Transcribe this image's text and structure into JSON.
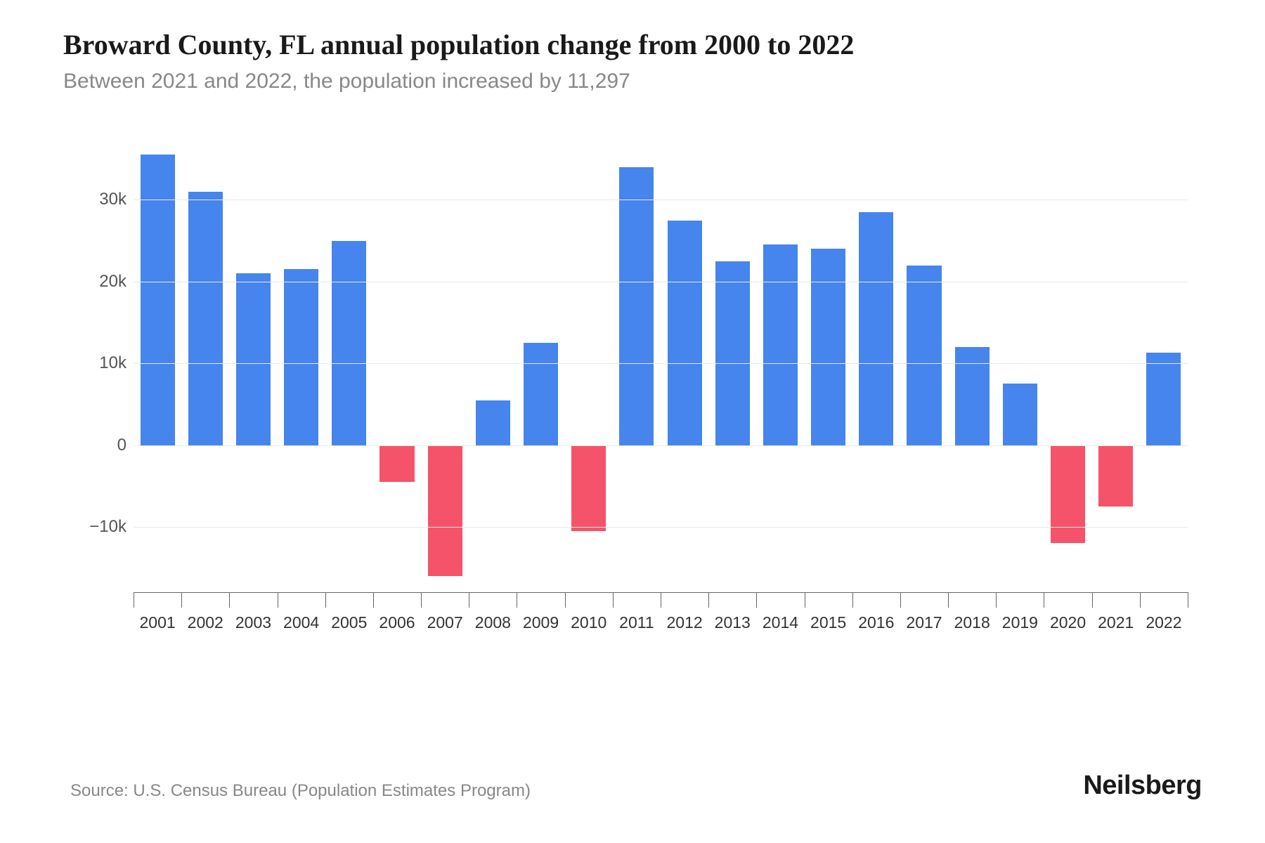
{
  "title": "Broward County, FL annual population change from 2000 to 2022",
  "subtitle": "Between 2021 and 2022, the population increased by 11,297",
  "source": "Source: U.S. Census Bureau (Population Estimates Program)",
  "brand": "Neilsberg",
  "chart": {
    "type": "bar",
    "categories": [
      "2001",
      "2002",
      "2003",
      "2004",
      "2005",
      "2006",
      "2007",
      "2008",
      "2009",
      "2010",
      "2011",
      "2012",
      "2013",
      "2014",
      "2015",
      "2016",
      "2017",
      "2018",
      "2019",
      "2020",
      "2021",
      "2022"
    ],
    "values": [
      35500,
      31000,
      21000,
      21500,
      25000,
      -4500,
      -16000,
      5500,
      12500,
      -10500,
      34000,
      27500,
      22500,
      24500,
      24000,
      28500,
      22000,
      12000,
      7500,
      -12000,
      -7500,
      11297
    ],
    "positive_color": "#4585ed",
    "negative_color": "#f5536a",
    "yticks": [
      -10000,
      0,
      10000,
      20000,
      30000
    ],
    "ytick_labels": [
      "−10k",
      "0",
      "10k",
      "20k",
      "30k"
    ],
    "ylim": [
      -18000,
      37000
    ],
    "background_color": "#ffffff",
    "grid_color": "#e8e8e8",
    "axis_color": "#666666",
    "tick_label_color": "#555555",
    "xlabel_color": "#333333",
    "title_color": "#1a1a1a",
    "subtitle_color": "#888888",
    "bar_width_ratio": 0.72,
    "label_fontsize": 24,
    "title_fontsize": 40,
    "subtitle_fontsize": 30,
    "brand_fontsize": 38
  }
}
